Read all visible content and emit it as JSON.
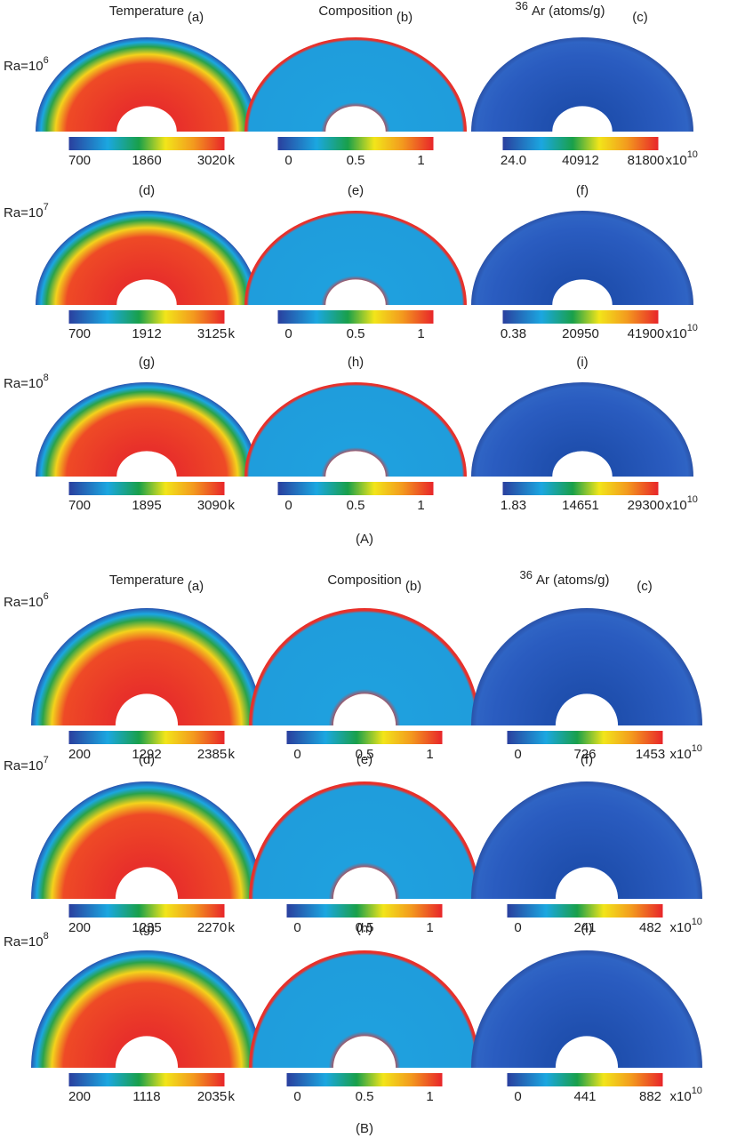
{
  "panels": [
    {
      "label": "(A)",
      "headers": [
        "Temperature",
        "Composition",
        "Ar (atoms/g)"
      ],
      "isotope": "36",
      "rows": [
        {
          "ra": "Ra=10",
          "ra_exp": "6",
          "plots": [
            {
              "letter": "(a)",
              "scale": [
                "700",
                "1860",
                "3020"
              ],
              "unit": "k"
            },
            {
              "letter": "(b)",
              "scale": [
                "0",
                "0.5",
                "1"
              ]
            },
            {
              "letter": "(c)",
              "scale": [
                "24.0",
                "40912",
                "81800"
              ],
              "unit": "x10",
              "unit_exp": "10"
            }
          ]
        },
        {
          "ra": "Ra=10",
          "ra_exp": "7",
          "plots": [
            {
              "letter": "(d)",
              "scale": [
                "700",
                "1912",
                "3125"
              ],
              "unit": "k"
            },
            {
              "letter": "(e)",
              "scale": [
                "0",
                "0.5",
                "1"
              ]
            },
            {
              "letter": "(f)",
              "scale": [
                "0.38",
                "20950",
                "41900"
              ],
              "unit": "x10",
              "unit_exp": "10"
            }
          ]
        },
        {
          "ra": "Ra=10",
          "ra_exp": "8",
          "plots": [
            {
              "letter": "(g)",
              "scale": [
                "700",
                "1895",
                "3090"
              ],
              "unit": "k"
            },
            {
              "letter": "(h)",
              "scale": [
                "0",
                "0.5",
                "1"
              ]
            },
            {
              "letter": "(i)",
              "scale": [
                "1.83",
                "14651",
                "29300"
              ],
              "unit": "x10",
              "unit_exp": "10"
            }
          ]
        }
      ]
    },
    {
      "label": "(B)",
      "headers": [
        "Temperature",
        "Composition",
        "Ar (atoms/g)"
      ],
      "isotope": "36",
      "rows": [
        {
          "ra": "Ra=10",
          "ra_exp": "6",
          "plots": [
            {
              "letter": "(a)",
              "scale": [
                "200",
                "1292",
                "2385"
              ],
              "unit": "k"
            },
            {
              "letter": "(b)",
              "scale": [
                "0",
                "0.5",
                "1"
              ]
            },
            {
              "letter": "(c)",
              "scale": [
                "0",
                "726",
                "1453"
              ],
              "unit": "x10",
              "unit_exp": "10"
            }
          ]
        },
        {
          "ra": "Ra=10",
          "ra_exp": "7",
          "plots": [
            {
              "letter": "(d)",
              "scale": [
                "200",
                "1235",
                "2270"
              ],
              "unit": "k"
            },
            {
              "letter": "(e)",
              "scale": [
                "0",
                "0.5",
                "1"
              ]
            },
            {
              "letter": "(f)",
              "scale": [
                "0",
                "241",
                "482"
              ],
              "unit": "x10",
              "unit_exp": "10"
            }
          ]
        },
        {
          "ra": "Ra=10",
          "ra_exp": "8",
          "plots": [
            {
              "letter": "(g)",
              "scale": [
                "200",
                "1118",
                "2035"
              ],
              "unit": "k"
            },
            {
              "letter": "(h)",
              "scale": [
                "0",
                "0.5",
                "1"
              ]
            },
            {
              "letter": "(i)",
              "scale": [
                "0",
                "441",
                "882"
              ],
              "unit": "x10",
              "unit_exp": "10"
            }
          ]
        }
      ]
    }
  ]
}
